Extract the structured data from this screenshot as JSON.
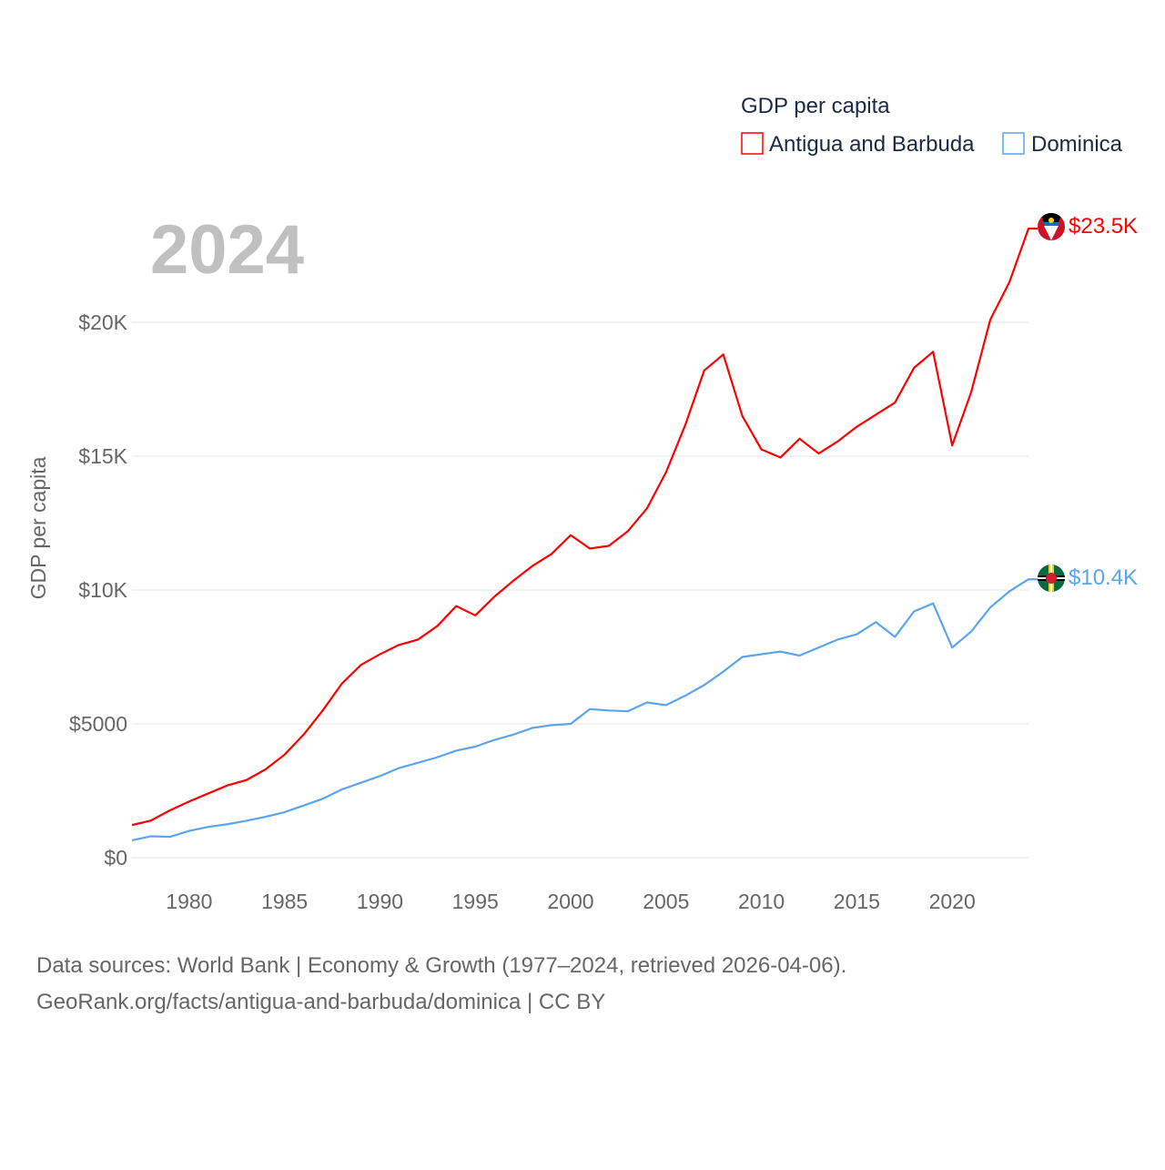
{
  "chart_data": {
    "type": "line",
    "title": "GDP per capita",
    "year_label": "2024",
    "ylabel": "GDP per capita",
    "xlabel": "",
    "xlim": [
      1977,
      2024
    ],
    "ylim": [
      0,
      24000
    ],
    "grid": true,
    "legend_placement": "top-right",
    "x_ticks": [
      1980,
      1985,
      1990,
      1995,
      2000,
      2005,
      2010,
      2015,
      2020
    ],
    "y_ticks": [
      {
        "value": 0,
        "label": "$0"
      },
      {
        "value": 5000,
        "label": "$5000"
      },
      {
        "value": 10000,
        "label": "$10K"
      },
      {
        "value": 15000,
        "label": "$15K"
      },
      {
        "value": 20000,
        "label": "$20K"
      }
    ],
    "x": [
      1977,
      1978,
      1979,
      1980,
      1981,
      1982,
      1983,
      1984,
      1985,
      1986,
      1987,
      1988,
      1989,
      1990,
      1991,
      1992,
      1993,
      1994,
      1995,
      1996,
      1997,
      1998,
      1999,
      2000,
      2001,
      2002,
      2003,
      2004,
      2005,
      2006,
      2007,
      2008,
      2009,
      2010,
      2011,
      2012,
      2013,
      2014,
      2015,
      2016,
      2017,
      2018,
      2019,
      2020,
      2021,
      2022,
      2023,
      2024
    ],
    "series": [
      {
        "name": "Antigua and Barbuda",
        "color": "#ff0000",
        "end_label": "$23.5K",
        "flag": "antigua-and-barbuda",
        "values": [
          1220,
          1390,
          1770,
          2100,
          2400,
          2700,
          2900,
          3300,
          3850,
          4600,
          5500,
          6500,
          7200,
          7600,
          7950,
          8150,
          8650,
          9400,
          9050,
          9750,
          10350,
          10900,
          11350,
          12050,
          11550,
          11650,
          12200,
          13050,
          14400,
          16150,
          18200,
          18800,
          16500,
          15250,
          14950,
          15650,
          15100,
          15550,
          16100,
          16550,
          17000,
          18300,
          18900,
          15400,
          17400,
          20100,
          21500,
          23500
        ]
      },
      {
        "name": "Dominica",
        "color": "#5ba4ee",
        "end_label": "$10.4K",
        "flag": "dominica",
        "values": [
          650,
          800,
          780,
          1000,
          1150,
          1250,
          1380,
          1530,
          1700,
          1950,
          2200,
          2550,
          2800,
          3050,
          3350,
          3550,
          3750,
          4000,
          4150,
          4400,
          4600,
          4850,
          4950,
          5000,
          5550,
          5500,
          5470,
          5800,
          5700,
          6050,
          6450,
          6950,
          7500,
          7600,
          7700,
          7550,
          7850,
          8150,
          8350,
          8800,
          8250,
          9200,
          9500,
          7850,
          8450,
          9350,
          9950,
          10400
        ]
      }
    ]
  },
  "footer": {
    "line1": "Data sources: World Bank | Economy & Growth (1977–2024, retrieved 2026-04-06).",
    "line2": "GeoRank.org/facts/antigua-and-barbuda/dominica | CC BY"
  }
}
